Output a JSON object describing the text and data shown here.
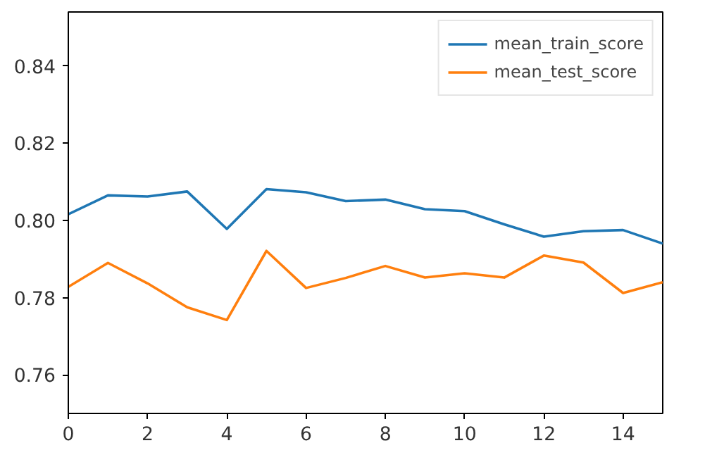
{
  "chart_data": {
    "type": "line",
    "x": [
      0,
      1,
      2,
      3,
      4,
      5,
      6,
      7,
      8,
      9,
      10,
      11,
      12,
      13,
      14,
      15
    ],
    "series": [
      {
        "name": "mean_train_score",
        "color": "#1f77b4",
        "values": [
          0.8016,
          0.8065,
          0.8062,
          0.8075,
          0.7978,
          0.8081,
          0.8073,
          0.805,
          0.8054,
          0.8029,
          0.8024,
          0.799,
          0.7958,
          0.7972,
          0.7975,
          0.794
        ]
      },
      {
        "name": "mean_test_score",
        "color": "#ff7f0e",
        "values": [
          0.7828,
          0.789,
          0.7837,
          0.7775,
          0.7742,
          0.7921,
          0.7825,
          0.7851,
          0.7882,
          0.7852,
          0.7863,
          0.7852,
          0.7909,
          0.7891,
          0.7812,
          0.784
        ]
      }
    ],
    "xlim": [
      0,
      15
    ],
    "xticks": [
      0,
      2,
      4,
      6,
      8,
      10,
      12,
      14
    ],
    "ylim": [
      0.75,
      0.854
    ],
    "yticks": [
      {
        "value": 0.76,
        "label": "0.76"
      },
      {
        "value": 0.78,
        "label": "0.78"
      },
      {
        "value": 0.8,
        "label": "0.80"
      },
      {
        "value": 0.82,
        "label": "0.82"
      },
      {
        "value": 0.84,
        "label": "0.84"
      }
    ],
    "grid": false,
    "legend": "top right",
    "line_style": "solid",
    "marker": "none"
  }
}
